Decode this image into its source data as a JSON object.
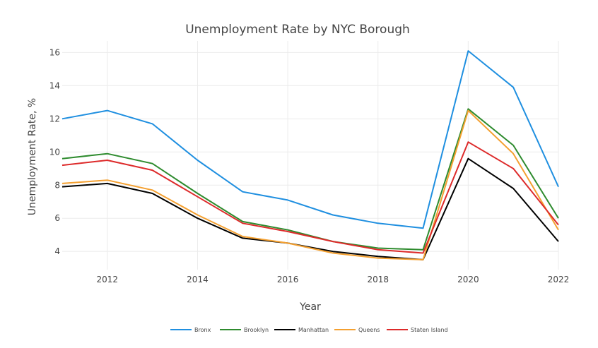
{
  "chart_data": {
    "type": "line",
    "title": "Unemployment Rate by NYC Borough",
    "xlabel": "Year",
    "ylabel": "Unemployment Rate, %",
    "xlim": [
      2011,
      2022
    ],
    "ylim": [
      2.9,
      16.7
    ],
    "x_ticks": [
      2012,
      2014,
      2016,
      2018,
      2020,
      2022
    ],
    "y_ticks": [
      4,
      6,
      8,
      10,
      12,
      14,
      16
    ],
    "grid": true,
    "legend_position": "bottom",
    "x": [
      2011,
      2012,
      2013,
      2014,
      2015,
      2016,
      2017,
      2018,
      2019,
      2020,
      2021,
      2022
    ],
    "series": [
      {
        "name": "Bronx",
        "color": "#1f8fe0",
        "values": [
          12.0,
          12.5,
          11.7,
          9.5,
          7.6,
          7.1,
          6.2,
          5.7,
          5.4,
          16.1,
          13.9,
          7.9
        ]
      },
      {
        "name": "Brooklyn",
        "color": "#2e8b2e",
        "values": [
          9.6,
          9.9,
          9.3,
          7.5,
          5.8,
          5.3,
          4.6,
          4.2,
          4.1,
          12.6,
          10.4,
          6.0
        ]
      },
      {
        "name": "Manhattan",
        "color": "#000000",
        "values": [
          7.9,
          8.1,
          7.5,
          6.0,
          4.8,
          4.5,
          4.0,
          3.7,
          3.5,
          9.6,
          7.8,
          4.6
        ]
      },
      {
        "name": "Queens",
        "color": "#f4a030",
        "values": [
          8.1,
          8.3,
          7.7,
          6.2,
          4.9,
          4.5,
          3.9,
          3.6,
          3.5,
          12.5,
          9.9,
          5.3
        ]
      },
      {
        "name": "Staten Island",
        "color": "#dd2a2a",
        "values": [
          9.2,
          9.5,
          8.9,
          7.3,
          5.7,
          5.2,
          4.6,
          4.1,
          3.9,
          10.6,
          9.0,
          5.6
        ]
      }
    ]
  }
}
